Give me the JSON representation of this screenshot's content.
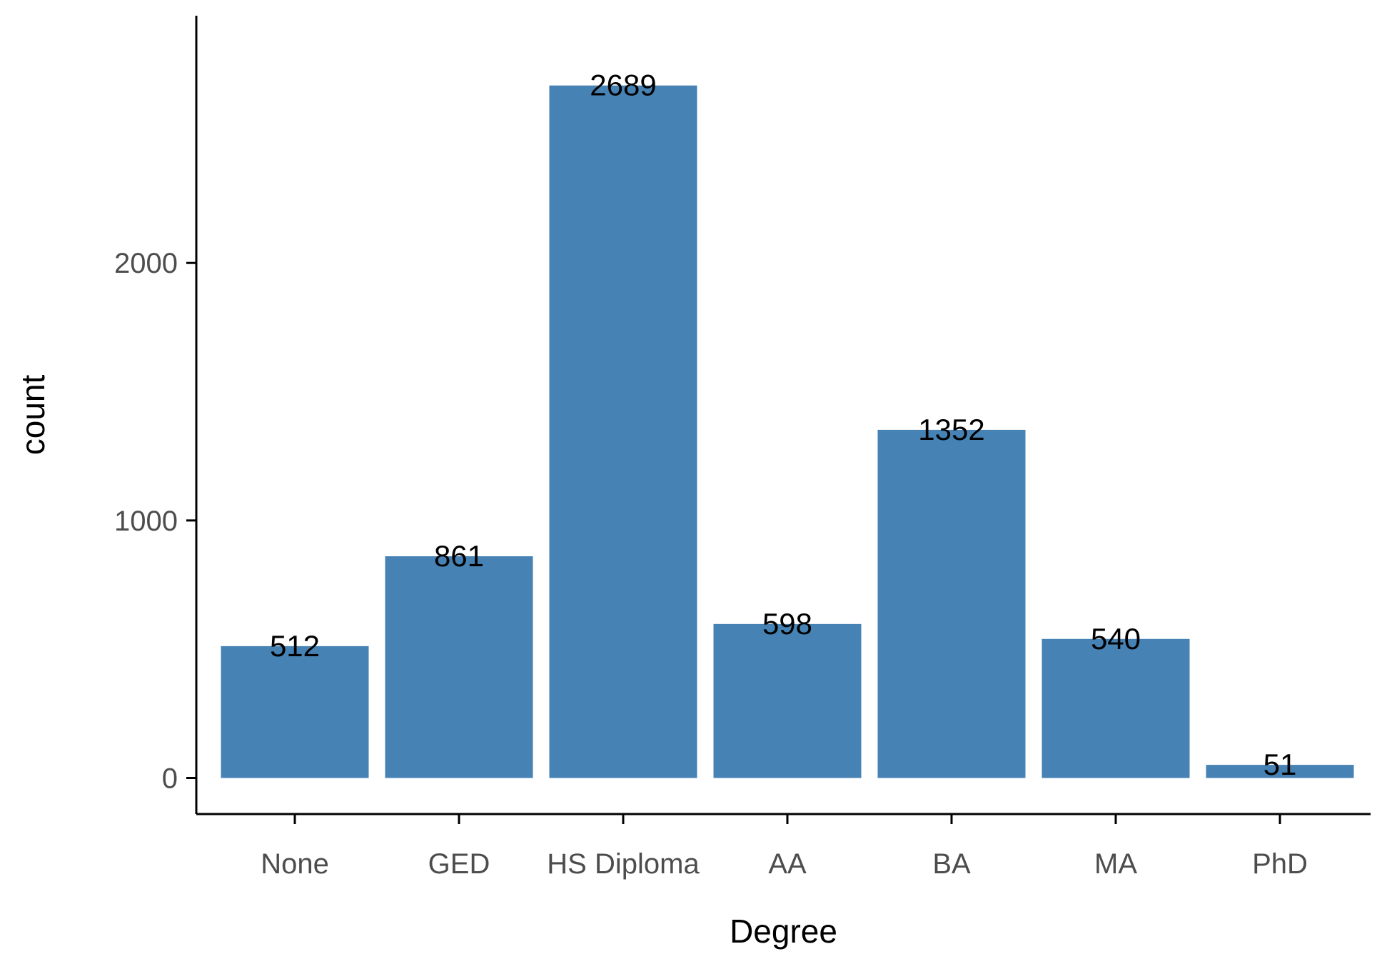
{
  "chart_data": {
    "type": "bar",
    "title": "",
    "xlabel": "Degree",
    "ylabel": "count",
    "categories": [
      "None",
      "GED",
      "HS Diploma",
      "AA",
      "BA",
      "MA",
      "PhD"
    ],
    "values": [
      512,
      861,
      2689,
      598,
      1352,
      540,
      51
    ],
    "data_labels": [
      "512",
      "861",
      "2689",
      "598",
      "1352",
      "540",
      "51"
    ],
    "y_ticks": [
      0,
      1000,
      2000
    ],
    "y_tick_labels": [
      "0",
      "1000",
      "2000"
    ],
    "ylim": [
      -140,
      2960
    ],
    "grid": false,
    "legend": "none",
    "colors": {
      "bar": "#4682b4",
      "axis": "#000000",
      "tick_label": "#4d4d4d",
      "text": "#000000"
    }
  }
}
